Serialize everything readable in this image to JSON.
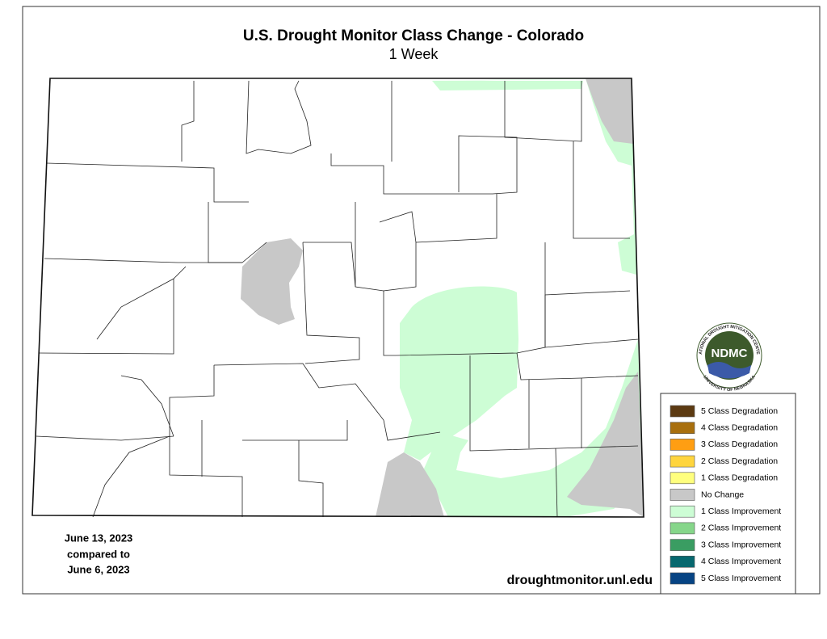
{
  "header": {
    "title": "U.S. Drought Monitor Class Change - Colorado",
    "subtitle": "1 Week"
  },
  "date_note": [
    "June 13, 2023",
    "compared to",
    "June 6, 2023"
  ],
  "source": "droughtmonitor.unl.edu",
  "logo": {
    "name": "NDMC",
    "top_ring": "NATIONAL DROUGHT MITIGATION CENTER",
    "bottom_ring": "UNIVERSITY OF NEBRASKA"
  },
  "legend": [
    {
      "label": "5 Class Degradation",
      "color": "#5c3a12"
    },
    {
      "label": "4 Class Degradation",
      "color": "#a86f0e"
    },
    {
      "label": "3 Class Degradation",
      "color": "#ff9e12"
    },
    {
      "label": "2 Class Degradation",
      "color": "#ffd53e"
    },
    {
      "label": "1 Class Degradation",
      "color": "#ffff7e"
    },
    {
      "label": "No Change",
      "color": "#c8c8c8"
    },
    {
      "label": "1 Class Improvement",
      "color": "#cdfdd5"
    },
    {
      "label": "2 Class Improvement",
      "color": "#86d68a"
    },
    {
      "label": "3 Class Improvement",
      "color": "#3a9d62"
    },
    {
      "label": "4 Class Improvement",
      "color": "#07686f"
    },
    {
      "label": "5 Class Improvement",
      "color": "#074484"
    }
  ]
}
